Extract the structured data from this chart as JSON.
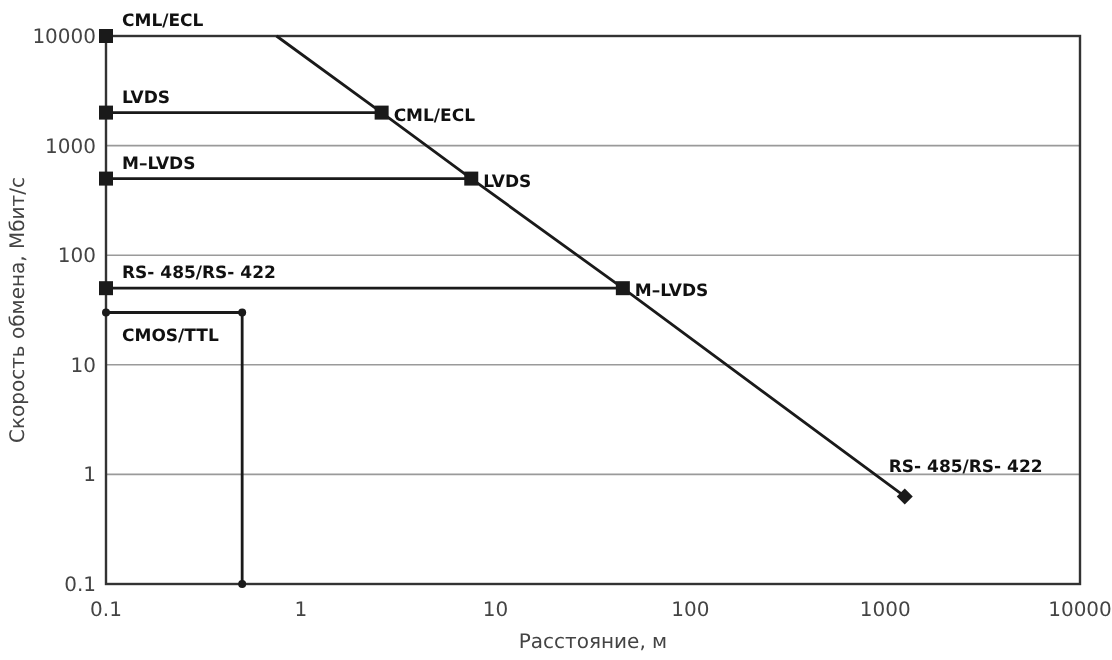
{
  "chart_data": {
    "type": "line",
    "xlabel": "Расстояние, м",
    "ylabel": "Скорость обмена, Мбит/с",
    "log": "xy",
    "grid": "y",
    "xlim": [
      0.1,
      10000
    ],
    "ylim": [
      0.1,
      10000
    ],
    "xticks": [
      0.1,
      1,
      10,
      100,
      1000,
      10000
    ],
    "yticks": [
      0.1,
      1,
      10,
      100,
      1000,
      10000
    ],
    "series": [
      {
        "type": "line",
        "color": "#1a1a1a",
        "marker": "none",
        "x": [
          0.75,
          2.6,
          7.5,
          45,
          1260
        ],
        "values": [
          10000,
          2000,
          500,
          50,
          0.63
        ]
      },
      {
        "type": "line",
        "color": "#1a1a1a",
        "marker": "none",
        "x": [
          0.1,
          2.6
        ],
        "values": [
          2000,
          2000
        ]
      },
      {
        "type": "line",
        "color": "#1a1a1a",
        "marker": "none",
        "x": [
          0.1,
          7.5
        ],
        "values": [
          500,
          500
        ]
      },
      {
        "type": "line",
        "color": "#1a1a1a",
        "marker": "none",
        "x": [
          0.1,
          45
        ],
        "values": [
          50,
          50
        ]
      },
      {
        "type": "line",
        "color": "#1a1a1a",
        "marker": "circle",
        "x": [
          0.1,
          0.5,
          0.5
        ],
        "values": [
          30,
          30,
          0.1
        ]
      },
      {
        "type": "scatter",
        "color": "#1a1a1a",
        "marker": "square",
        "x": [
          0.1,
          0.1,
          0.1,
          0.1,
          2.6,
          7.5,
          45
        ],
        "values": [
          10000,
          2000,
          500,
          50,
          2000,
          500,
          50
        ]
      },
      {
        "type": "scatter",
        "color": "#1a1a1a",
        "marker": "diamond",
        "x": [
          1260
        ],
        "values": [
          0.63
        ]
      }
    ],
    "annotations": [
      {
        "text": "CML/ECL",
        "x": 0.1,
        "y": 10000
      },
      {
        "text": "LVDS",
        "x": 0.1,
        "y": 2000
      },
      {
        "text": "M–LVDS",
        "x": 0.1,
        "y": 500
      },
      {
        "text": "RS- 485/RS- 422",
        "x": 0.1,
        "y": 50
      },
      {
        "text": "CMOS/TTL",
        "x": 0.1,
        "y": 30
      },
      {
        "text": "CML/ECL",
        "x": 2.6,
        "y": 2000
      },
      {
        "text": "LVDS",
        "x": 7.5,
        "y": 500
      },
      {
        "text": "M–LVDS",
        "x": 45,
        "y": 50
      },
      {
        "text": "RS- 485/RS- 422",
        "x": 1260,
        "y": 0.63
      }
    ]
  }
}
